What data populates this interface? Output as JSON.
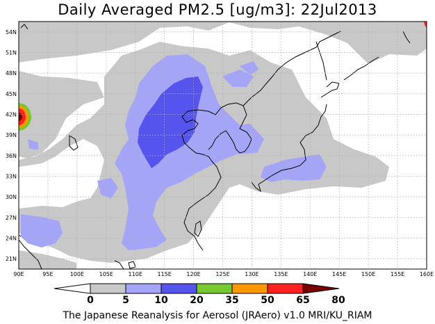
{
  "title": "Daily Averaged PM2.5 [ug/m3]: 22Jul2013",
  "credit": "The Japanese Reanalysis for Aerosol (JRAero) v1.0 MRI/KU_RIAM",
  "map": {
    "lon_range": [
      90,
      160
    ],
    "lat_range": [
      19.5,
      55.5
    ],
    "grid": true,
    "lat_ticks": [
      "54N",
      "51N",
      "48N",
      "45N",
      "42N",
      "39N",
      "36N",
      "33N",
      "30N",
      "27N",
      "24N",
      "21N"
    ],
    "lon_ticks": [
      "90E",
      "95E",
      "100E",
      "105E",
      "110E",
      "115E",
      "120E",
      "125E",
      "130E",
      "135E",
      "140E",
      "145E",
      "150E",
      "155E",
      "160E"
    ]
  },
  "colorbar": {
    "levels": [
      "0",
      "5",
      "10",
      "20",
      "35",
      "50",
      "65",
      "80"
    ],
    "colors": [
      "#ffffff",
      "#c8c8c8",
      "#a5a5f8",
      "#5555ee",
      "#78c832",
      "#ff9600",
      "#ff2020",
      "#780000"
    ],
    "outline": "#000000"
  },
  "colors": {
    "land_border": "#000000",
    "grid": "#b0b0b0"
  }
}
